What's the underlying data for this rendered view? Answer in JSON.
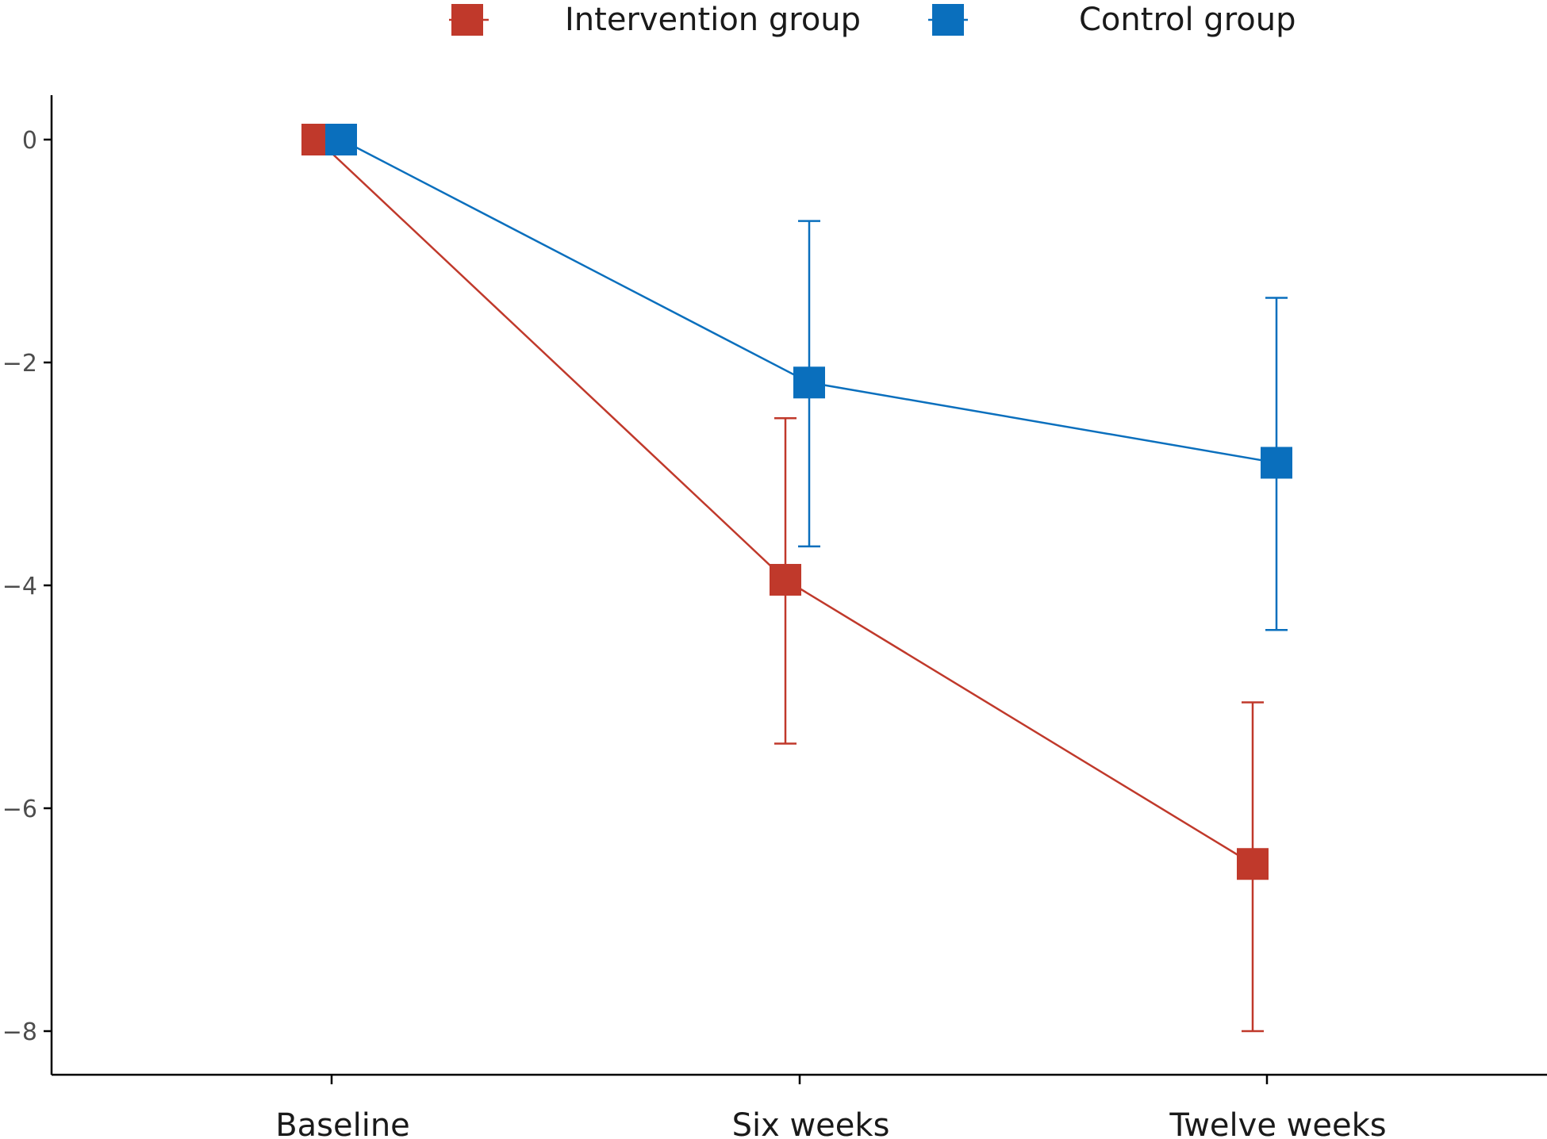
{
  "chart_data": {
    "type": "line",
    "title": "",
    "xlabel": "",
    "ylabel": "",
    "categories": [
      "Baseline",
      "Six weeks",
      "Twelve weeks"
    ],
    "ylim": [
      -8.4,
      0.4
    ],
    "yticks": [
      0,
      -2,
      -4,
      -6,
      -8
    ],
    "ytick_labels": [
      "0",
      "−2",
      "−4",
      "−6",
      "−8"
    ],
    "grid": false,
    "legend_position": "top",
    "series": [
      {
        "name": "Intervention group",
        "color": "#c0392b",
        "values": [
          0,
          -3.95,
          -6.5
        ],
        "error_lower": [
          null,
          -5.42,
          -8.0
        ],
        "error_upper": [
          null,
          -2.5,
          -5.05
        ]
      },
      {
        "name": "Control group",
        "color": "#0a6fbd",
        "values": [
          0,
          -2.18,
          -2.9
        ],
        "error_lower": [
          null,
          -3.65,
          -4.4
        ],
        "error_upper": [
          null,
          -0.73,
          -1.42
        ]
      }
    ]
  }
}
